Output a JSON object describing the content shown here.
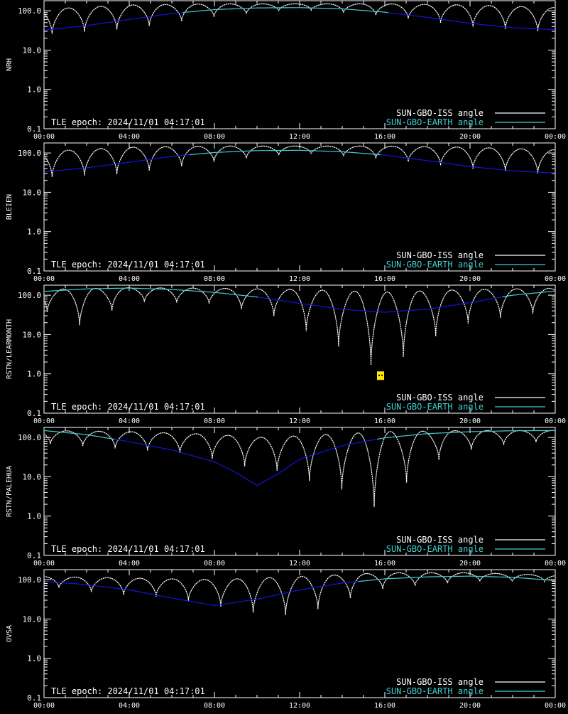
{
  "colors": {
    "background": "#000000",
    "axis": "#ffffff",
    "iss_line": "#ffffff",
    "earth_line_above": "#3fd0d0",
    "earth_line_below": "#1414e0",
    "flag": "#ffea00"
  },
  "chart_data": [
    {
      "type": "line",
      "ylabel": "NRH",
      "yscale": "log",
      "ylim": [
        0.1,
        180
      ],
      "xlim": [
        0,
        24
      ],
      "xticks": [
        "00:00",
        "04:00",
        "08:00",
        "12:00",
        "16:00",
        "20:00",
        "00:00"
      ],
      "yticks": [
        "0.1",
        "1.0",
        "10.0",
        "100.0"
      ],
      "annotation": "TLE epoch: 2024/11/01 04:17:01",
      "legend_position": "bottom-right",
      "series": [
        {
          "name": "SUN-GBO-ISS angle",
          "color": "#ffffff",
          "period_h": 1.52,
          "phase_h": 0.38,
          "peak": [
            [
              0,
              110
            ],
            [
              4,
              140
            ],
            [
              8,
              150
            ],
            [
              12,
              150
            ],
            [
              16,
              150
            ],
            [
              20,
              140
            ],
            [
              24,
              120
            ]
          ],
          "min": [
            [
              0,
              25
            ],
            [
              4,
              35
            ],
            [
              8,
              70
            ],
            [
              12,
              110
            ],
            [
              16,
              75
            ],
            [
              20,
              40
            ],
            [
              24,
              28
            ]
          ]
        },
        {
          "name": "SUN-GBO-EARTH angle",
          "color": "#3fd0d0",
          "points": [
            [
              0,
              32
            ],
            [
              2,
              42
            ],
            [
              4,
              60
            ],
            [
              6,
              85
            ],
            [
              8,
              107
            ],
            [
              10,
              118
            ],
            [
              12,
              120
            ],
            [
              14,
              112
            ],
            [
              16,
              92
            ],
            [
              18,
              68
            ],
            [
              20,
              48
            ],
            [
              22,
              37
            ],
            [
              24,
              33
            ]
          ]
        }
      ]
    },
    {
      "type": "line",
      "ylabel": "BLEIEN",
      "yscale": "log",
      "ylim": [
        0.1,
        180
      ],
      "xlim": [
        0,
        24
      ],
      "xticks": [
        "00:00",
        "04:00",
        "08:00",
        "12:00",
        "16:00",
        "20:00",
        "00:00"
      ],
      "yticks": [
        "0.1",
        "1.0",
        "10.0",
        "100.0"
      ],
      "annotation": "TLE epoch: 2024/11/01 04:17:01",
      "legend_position": "bottom-right",
      "series": [
        {
          "name": "SUN-GBO-ISS angle",
          "color": "#ffffff",
          "period_h": 1.52,
          "phase_h": 0.38,
          "peak": [
            [
              0,
              110
            ],
            [
              4,
              140
            ],
            [
              8,
              150
            ],
            [
              12,
              150
            ],
            [
              16,
              150
            ],
            [
              20,
              140
            ],
            [
              24,
              120
            ]
          ],
          "min": [
            [
              0,
              24
            ],
            [
              4,
              30
            ],
            [
              8,
              60
            ],
            [
              12,
              100
            ],
            [
              16,
              70
            ],
            [
              20,
              40
            ],
            [
              24,
              28
            ]
          ]
        },
        {
          "name": "SUN-GBO-EARTH angle",
          "color": "#3fd0d0",
          "points": [
            [
              0,
              33
            ],
            [
              2,
              42
            ],
            [
              4,
              58
            ],
            [
              6,
              82
            ],
            [
              8,
              103
            ],
            [
              10,
              115
            ],
            [
              12,
              117
            ],
            [
              14,
              108
            ],
            [
              16,
              88
            ],
            [
              18,
              64
            ],
            [
              20,
              45
            ],
            [
              22,
              35
            ],
            [
              24,
              31
            ]
          ]
        }
      ]
    },
    {
      "type": "line",
      "ylabel": "RSTN/LEARMONTH",
      "yscale": "log",
      "ylim": [
        0.1,
        180
      ],
      "xlim": [
        0,
        24
      ],
      "xticks": [
        "00:00",
        "04:00",
        "08:00",
        "12:00",
        "16:00",
        "20:00",
        "00:00"
      ],
      "yticks": [
        "0.1",
        "1.0",
        "10.0",
        "100.0"
      ],
      "annotation": "TLE epoch: 2024/11/01 04:17:01",
      "legend_position": "bottom-right",
      "flag": {
        "x": 15.8,
        "y": 0.9
      },
      "series": [
        {
          "name": "SUN-GBO-ISS angle",
          "color": "#ffffff",
          "period_h": 1.52,
          "phase_h": 0.15,
          "peak": [
            [
              0,
              140
            ],
            [
              4,
              155
            ],
            [
              8,
              150
            ],
            [
              12,
              140
            ],
            [
              16,
              120
            ],
            [
              20,
              140
            ],
            [
              24,
              150
            ]
          ],
          "min": [
            [
              0,
              40
            ],
            [
              1.8,
              16
            ],
            [
              4,
              70
            ],
            [
              8,
              60
            ],
            [
              11,
              28
            ],
            [
              12.8,
              9
            ],
            [
              14.2,
              4
            ],
            [
              15.8,
              1.2
            ],
            [
              17.4,
              4
            ],
            [
              19,
              15
            ],
            [
              21,
              25
            ],
            [
              24,
              40
            ]
          ]
        },
        {
          "name": "SUN-GBO-EARTH angle",
          "color": "#3fd0d0",
          "points": [
            [
              0,
              125
            ],
            [
              2,
              145
            ],
            [
              4,
              152
            ],
            [
              6,
              140
            ],
            [
              8,
              118
            ],
            [
              10,
              90
            ],
            [
              12,
              62
            ],
            [
              14,
              44
            ],
            [
              16,
              37
            ],
            [
              18,
              44
            ],
            [
              20,
              65
            ],
            [
              22,
              100
            ],
            [
              24,
              128
            ]
          ]
        }
      ]
    },
    {
      "type": "line",
      "ylabel": "RSTN/PALEHUA",
      "yscale": "log",
      "ylim": [
        0.1,
        180
      ],
      "xlim": [
        0,
        24
      ],
      "xticks": [
        "00:00",
        "04:00",
        "08:00",
        "12:00",
        "16:00",
        "20:00",
        "00:00"
      ],
      "yticks": [
        "0.1",
        "1.0",
        "10.0",
        "100.0"
      ],
      "annotation": "TLE epoch: 2024/11/01 04:17:01",
      "legend_position": "bottom-right",
      "series": [
        {
          "name": "SUN-GBO-ISS angle",
          "color": "#ffffff",
          "period_h": 1.52,
          "phase_h": 0.3,
          "peak": [
            [
              0,
              150
            ],
            [
              4,
              140
            ],
            [
              8,
              120
            ],
            [
              10,
              100
            ],
            [
              12,
              110
            ],
            [
              16,
              140
            ],
            [
              20,
              150
            ],
            [
              24,
              150
            ]
          ],
          "min": [
            [
              0,
              70
            ],
            [
              4,
              50
            ],
            [
              6.5,
              40
            ],
            [
              8,
              28
            ],
            [
              9.5,
              18
            ],
            [
              11,
              14
            ],
            [
              12.4,
              8
            ],
            [
              13.9,
              5
            ],
            [
              15.5,
              1.7
            ],
            [
              17,
              7
            ],
            [
              19,
              40
            ],
            [
              22,
              70
            ],
            [
              24,
              80
            ]
          ]
        },
        {
          "name": "SUN-GBO-EARTH angle",
          "color": "#3fd0d0",
          "points": [
            [
              0,
              150
            ],
            [
              2,
              118
            ],
            [
              4,
              78
            ],
            [
              6,
              48
            ],
            [
              8,
              24
            ],
            [
              9,
              13
            ],
            [
              10,
              6
            ],
            [
              11,
              12
            ],
            [
              12,
              28
            ],
            [
              14,
              62
            ],
            [
              16,
              98
            ],
            [
              18,
              125
            ],
            [
              20,
              140
            ],
            [
              22,
              148
            ],
            [
              24,
              150
            ]
          ]
        }
      ]
    },
    {
      "type": "line",
      "ylabel": "OVSA",
      "yscale": "log",
      "ylim": [
        0.1,
        180
      ],
      "xlim": [
        0,
        24
      ],
      "xticks": [
        "00:00",
        "04:00",
        "08:00",
        "12:00",
        "16:00",
        "20:00",
        "00:00"
      ],
      "yticks": [
        "0.1",
        "1.0",
        "10.0",
        "100.0"
      ],
      "annotation": "TLE epoch: 2024/11/01 04:17:01",
      "legend_position": "bottom-right",
      "series": [
        {
          "name": "SUN-GBO-ISS angle",
          "color": "#ffffff",
          "period_h": 1.52,
          "phase_h": 0.7,
          "peak": [
            [
              0,
              120
            ],
            [
              4,
              110
            ],
            [
              8,
              100
            ],
            [
              12,
              120
            ],
            [
              16,
              150
            ],
            [
              20,
              150
            ],
            [
              24,
              130
            ]
          ],
          "min": [
            [
              0,
              70
            ],
            [
              2,
              50
            ],
            [
              4,
              40
            ],
            [
              6,
              35
            ],
            [
              8,
              22
            ],
            [
              10,
              14
            ],
            [
              12,
              12
            ],
            [
              14,
              30
            ],
            [
              16,
              60
            ],
            [
              20,
              90
            ],
            [
              24,
              90
            ]
          ]
        },
        {
          "name": "SUN-GBO-EARTH angle",
          "color": "#3fd0d0",
          "points": [
            [
              0,
              90
            ],
            [
              2,
              75
            ],
            [
              4,
              55
            ],
            [
              6,
              34
            ],
            [
              8,
              22
            ],
            [
              10,
              32
            ],
            [
              12,
              55
            ],
            [
              14,
              82
            ],
            [
              16,
              105
            ],
            [
              18,
              118
            ],
            [
              20,
              123
            ],
            [
              22,
              115
            ],
            [
              24,
              95
            ]
          ]
        }
      ]
    }
  ]
}
